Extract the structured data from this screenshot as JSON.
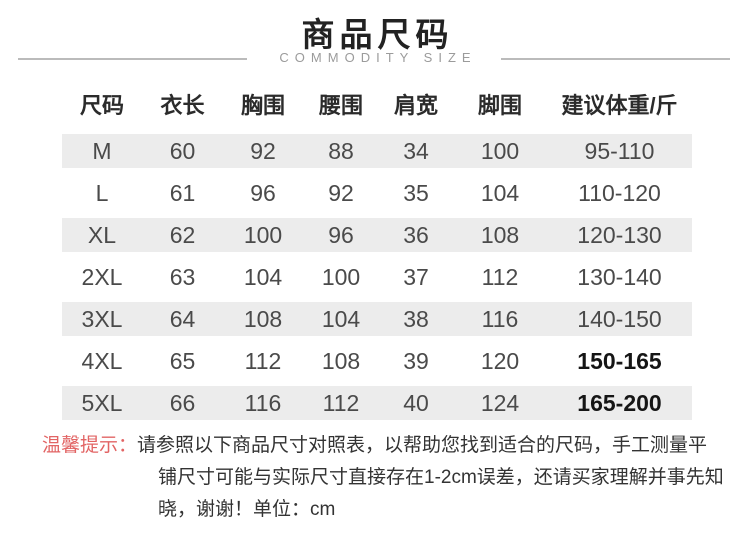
{
  "header": {
    "title": "商品尺码",
    "subtitle": "COMMODITY SIZE"
  },
  "table": {
    "columns": [
      "尺码",
      "衣长",
      "胸围",
      "腰围",
      "肩宽",
      "脚围",
      "建议体重/斤"
    ],
    "rows": [
      {
        "cells": [
          "M",
          "60",
          "92",
          "88",
          "34",
          "100",
          "95-110"
        ]
      },
      {
        "cells": [
          "L",
          "61",
          "96",
          "92",
          "35",
          "104",
          "110-120"
        ]
      },
      {
        "cells": [
          "XL",
          "62",
          "100",
          "96",
          "36",
          "108",
          "120-130"
        ]
      },
      {
        "cells": [
          "2XL",
          "63",
          "104",
          "100",
          "37",
          "112",
          "130-140"
        ]
      },
      {
        "cells": [
          "3XL",
          "64",
          "108",
          "104",
          "38",
          "116",
          "140-150"
        ]
      },
      {
        "cells": [
          "4XL",
          "65",
          "112",
          "108",
          "39",
          "120",
          "150-165"
        ]
      },
      {
        "cells": [
          "5XL",
          "66",
          "116",
          "112",
          "40",
          "124",
          "165-200"
        ]
      }
    ]
  },
  "note": {
    "label": "温馨提示：",
    "line1": "请参照以下商品尺寸对照表，以帮助您找到适合的尺码，手工测量平",
    "line2": "铺尺寸可能与实际尺寸直接存在1-2cm误差，还请买家理解并事先知",
    "line3": "晓，谢谢！单位：cm"
  },
  "colors": {
    "accent_red": "#e26464",
    "row_band": "#ececec",
    "subtitle_gray": "#9b9b9b",
    "divider_gray": "#bbbbbb",
    "header_text": "#2b2b2b",
    "body_text": "#4a4a4a"
  }
}
